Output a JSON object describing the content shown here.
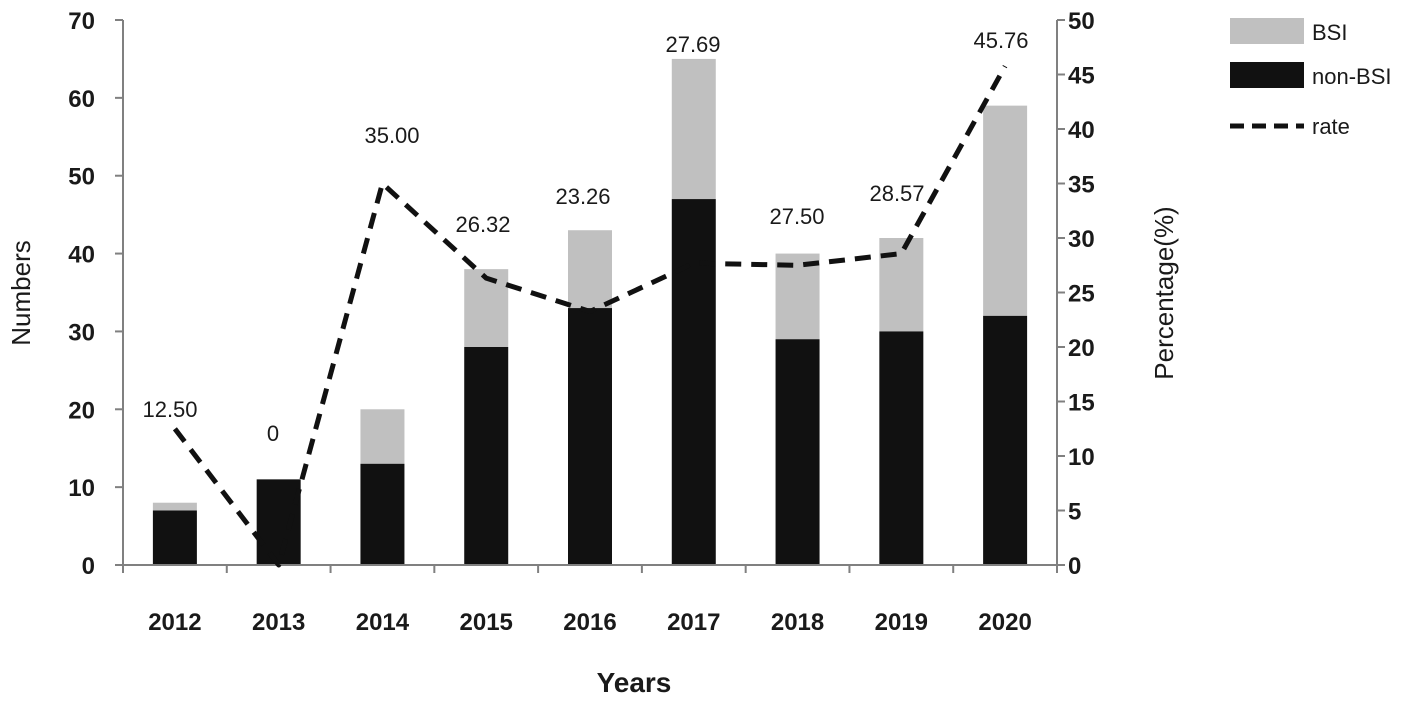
{
  "chart_data": {
    "type": "bar",
    "stacked": true,
    "categories": [
      "2012",
      "2013",
      "2014",
      "2015",
      "2016",
      "2017",
      "2018",
      "2019",
      "2020"
    ],
    "series": [
      {
        "name": "non-BSI",
        "kind": "bar",
        "axis": "left",
        "color": "#111111",
        "values": [
          7,
          11,
          13,
          28,
          33,
          47,
          29,
          30,
          32
        ]
      },
      {
        "name": "BSI",
        "kind": "bar",
        "axis": "left",
        "color": "#c0c0c0",
        "values": [
          1,
          0,
          7,
          10,
          10,
          18,
          11,
          12,
          27
        ]
      },
      {
        "name": "rate",
        "kind": "line",
        "style": "dashed",
        "axis": "right",
        "color": "#111111",
        "values": [
          12.5,
          0,
          35.0,
          26.32,
          23.26,
          27.69,
          27.5,
          28.57,
          45.76
        ]
      }
    ],
    "data_labels": [
      "12.50",
      "0",
      "35.00",
      "26.32",
      "23.26",
      "27.69",
      "27.50",
      "28.57",
      "45.76"
    ],
    "xlabel": "Years",
    "ylabel": "Numbers",
    "y2label": "Percentage(%)",
    "ylim": [
      0,
      70
    ],
    "yticks": [
      0,
      10,
      20,
      30,
      40,
      50,
      60,
      70
    ],
    "y2lim": [
      0,
      50
    ],
    "y2ticks": [
      0,
      5,
      10,
      15,
      20,
      25,
      30,
      35,
      40,
      45,
      50
    ],
    "legend": {
      "position": "top-right",
      "entries": [
        {
          "label": "BSI",
          "swatch": "bar",
          "color": "#c0c0c0"
        },
        {
          "label": "non-BSI",
          "swatch": "bar",
          "color": "#111111"
        },
        {
          "label": "rate",
          "swatch": "dashed-line",
          "color": "#111111"
        }
      ]
    }
  }
}
